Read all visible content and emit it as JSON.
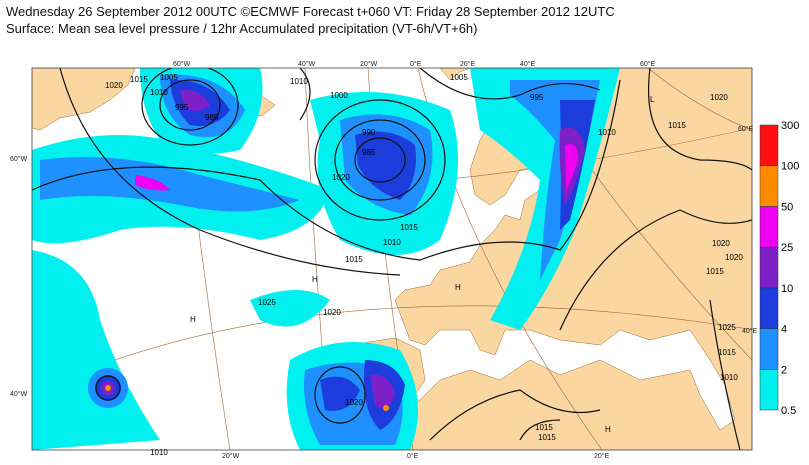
{
  "header": {
    "line1": "Wednesday 26 September 2012 00UTC ©ECMWF Forecast t+060 VT: Friday 28 September 2012 12UTC",
    "line2": "Surface: Mean sea level pressure / 12hr Accumulated precipitation (VT-6h/VT+6h)"
  },
  "legend": {
    "labels": [
      "0.5",
      "2",
      "4",
      "10",
      "25",
      "50",
      "100",
      "300"
    ],
    "colors": [
      "#00f0f0",
      "#1e90ff",
      "#1c3cdc",
      "#7d20c8",
      "#f000f0",
      "#ff8c00",
      "#ff1010"
    ]
  },
  "map": {
    "lon_labels_top": [
      "60°W",
      "40°W",
      "20°W",
      "0°E",
      "20°E",
      "40°E",
      "60°E"
    ],
    "lon_labels_bottom": [
      "20°W",
      "0°E",
      "20°E"
    ],
    "lat_labels_left": [
      "60°W",
      "40°W"
    ],
    "lat_labels_right": [
      "60°E",
      "40°E"
    ],
    "contour_labels": [
      "1020",
      "1015",
      "1010",
      "1005",
      "995",
      "985",
      "1010",
      "1000",
      "990",
      "985",
      "1005",
      "995",
      "1010",
      "1015",
      "1020",
      "1025",
      "1020",
      "1015",
      "1020",
      "1015",
      "1010",
      "1015",
      "1020",
      "1020",
      "1015",
      "1025",
      "1015",
      "1010",
      "1010",
      "1020",
      "1015"
    ],
    "high_labels": [
      "H",
      "H",
      "H",
      "L",
      "H"
    ]
  }
}
